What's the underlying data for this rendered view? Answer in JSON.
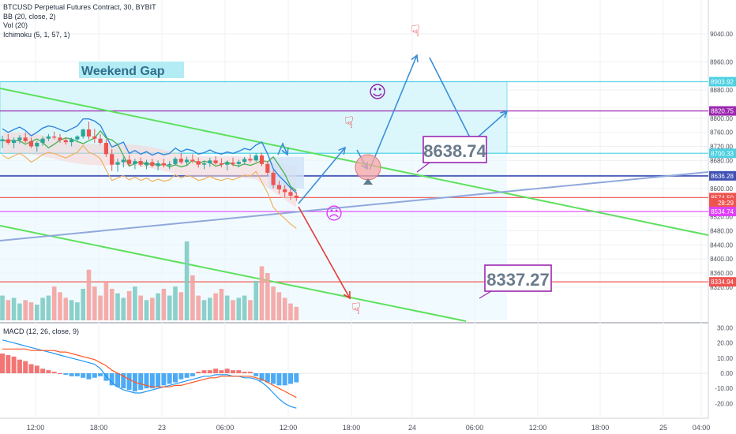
{
  "chart_data": {
    "type": "candlestick",
    "legend": [
      "BTCUSD Perpetual Futures Contract, 30, BYBIT",
      "BB (20, close, 2)",
      "Vol (20)",
      "Ichimoku (5, 1, 57, 1)"
    ],
    "macd_label": "MACD (12, 26, close, 9)",
    "y_ticks": [
      "9040.00",
      "8960.00",
      "8880.00",
      "8800.00",
      "8760.00",
      "8720.00",
      "8680.00",
      "8600.00",
      "8520.00",
      "8480.00",
      "8440.00",
      "8400.00",
      "8360.00",
      "8320.00"
    ],
    "macd_ticks": [
      "30.00",
      "20.00",
      "10.00",
      "0.00",
      "-10.00",
      "-20.00"
    ],
    "x_ticks": [
      "12:00",
      "18:00",
      "23",
      "06:00",
      "12:00",
      "18:00",
      "24",
      "06:00",
      "12:00",
      "18:00",
      "25",
      "04:00"
    ],
    "levels": [
      {
        "label": "8903.92",
        "value": 8903.92,
        "color": "#4dd0e1"
      },
      {
        "label": "8820.75",
        "value": 8820.75,
        "color": "#9c27b0"
      },
      {
        "label": "8700.33",
        "value": 8700.33,
        "color": "#4dd0e1"
      },
      {
        "label": "8636.28",
        "value": 8636.28,
        "color": "#3f51b5"
      },
      {
        "label": "8574.50",
        "value": 8574.5,
        "color": "#ef5350"
      },
      {
        "label": "28:29",
        "value": 8560,
        "color": "#ef5350"
      },
      {
        "label": "8534.74",
        "value": 8534.74,
        "color": "#e040fb"
      },
      {
        "label": "8334.94",
        "value": 8334.94,
        "color": "#ef5350"
      }
    ],
    "annotations": {
      "weekend_gap": "Weekend Gap",
      "upper_target": "8638.74",
      "lower_target": "8337.27"
    },
    "candles": [
      [
        8735,
        8750,
        8715,
        8740
      ],
      [
        8740,
        8755,
        8725,
        8730
      ],
      [
        8730,
        8745,
        8715,
        8738
      ],
      [
        8738,
        8752,
        8728,
        8745
      ],
      [
        8745,
        8760,
        8730,
        8735
      ],
      [
        8735,
        8745,
        8715,
        8720
      ],
      [
        8720,
        8735,
        8705,
        8730
      ],
      [
        8730,
        8748,
        8722,
        8742
      ],
      [
        8742,
        8755,
        8735,
        8748
      ],
      [
        8748,
        8762,
        8740,
        8745
      ],
      [
        8745,
        8755,
        8730,
        8738
      ],
      [
        8738,
        8746,
        8725,
        8732
      ],
      [
        8732,
        8745,
        8720,
        8740
      ],
      [
        8740,
        8752,
        8732,
        8748
      ],
      [
        8748,
        8770,
        8742,
        8768
      ],
      [
        8768,
        8790,
        8740,
        8748
      ],
      [
        8748,
        8770,
        8730,
        8742
      ],
      [
        8742,
        8755,
        8725,
        8730
      ],
      [
        8730,
        8740,
        8690,
        8698
      ],
      [
        8698,
        8712,
        8650,
        8668
      ],
      [
        8668,
        8685,
        8648,
        8675
      ],
      [
        8675,
        8690,
        8660,
        8682
      ],
      [
        8682,
        8695,
        8665,
        8670
      ],
      [
        8670,
        8685,
        8655,
        8678
      ],
      [
        8678,
        8688,
        8662,
        8668
      ],
      [
        8668,
        8682,
        8655,
        8675
      ],
      [
        8675,
        8685,
        8660,
        8665
      ],
      [
        8665,
        8680,
        8652,
        8672
      ],
      [
        8672,
        8685,
        8660,
        8666
      ],
      [
        8666,
        8678,
        8655,
        8670
      ],
      [
        8670,
        8690,
        8665,
        8685
      ],
      [
        8685,
        8700,
        8670,
        8675
      ],
      [
        8675,
        8690,
        8665,
        8682
      ],
      [
        8682,
        8698,
        8672,
        8678
      ],
      [
        8678,
        8688,
        8660,
        8668
      ],
      [
        8668,
        8680,
        8655,
        8672
      ],
      [
        8672,
        8688,
        8662,
        8680
      ],
      [
        8680,
        8692,
        8668,
        8672
      ],
      [
        8672,
        8686,
        8660,
        8668
      ],
      [
        8668,
        8680,
        8652,
        8674
      ],
      [
        8674,
        8688,
        8664,
        8670
      ],
      [
        8670,
        8682,
        8660,
        8676
      ],
      [
        8676,
        8690,
        8668,
        8684
      ],
      [
        8684,
        8698,
        8674,
        8680
      ],
      [
        8680,
        8700,
        8676,
        8694
      ],
      [
        8694,
        8702,
        8664,
        8670
      ],
      [
        8670,
        8678,
        8638,
        8645
      ],
      [
        8645,
        8652,
        8600,
        8610
      ],
      [
        8610,
        8622,
        8585,
        8598
      ],
      [
        8598,
        8610,
        8575,
        8590
      ],
      [
        8590,
        8600,
        8568,
        8580
      ],
      [
        8580,
        8590,
        8565,
        8574
      ]
    ],
    "volumes": [
      22,
      18,
      20,
      15,
      18,
      16,
      14,
      20,
      22,
      30,
      25,
      20,
      18,
      16,
      28,
      45,
      30,
      22,
      35,
      28,
      24,
      20,
      26,
      30,
      22,
      18,
      20,
      24,
      28,
      22,
      30,
      25,
      70,
      40,
      22,
      18,
      20,
      24,
      28,
      22,
      18,
      20,
      22,
      18,
      35,
      48,
      42,
      30,
      25,
      20,
      15,
      12
    ],
    "macd_hist": [
      13,
      12,
      11,
      9,
      8,
      6,
      5,
      3,
      2,
      1,
      0,
      -1,
      -2,
      -2,
      -3,
      -4,
      -3,
      -2,
      -5,
      -8,
      -9,
      -10,
      -11,
      -12,
      -11,
      -10,
      -10,
      -9,
      -8,
      -7,
      -6,
      -4,
      -3,
      -2,
      1,
      2,
      2,
      3,
      2,
      3,
      2,
      2,
      1,
      1,
      -2,
      -5,
      -6,
      -7,
      -8,
      -8,
      -7,
      -6
    ],
    "macd_line": [
      22,
      21,
      20,
      19,
      18,
      17,
      16,
      15,
      14,
      13,
      12,
      11,
      10,
      9,
      8,
      7,
      6,
      3,
      -2,
      -6,
      -9,
      -11,
      -12,
      -13,
      -13,
      -12,
      -11,
      -10,
      -9,
      -8,
      -7,
      -6,
      -5,
      -4,
      -3,
      -2,
      -2,
      -1,
      -1,
      -1,
      -2,
      -2,
      -3,
      -3,
      -4,
      -6,
      -9,
      -13,
      -17,
      -20,
      -22,
      -23
    ],
    "signal_line": [
      16,
      16,
      16,
      16,
      16,
      15,
      15,
      15,
      15,
      15,
      14,
      14,
      13,
      12,
      11,
      10,
      9,
      7,
      5,
      2,
      0,
      -2,
      -4,
      -6,
      -7,
      -8,
      -9,
      -9,
      -9,
      -9,
      -8,
      -8,
      -7,
      -6,
      -5,
      -4,
      -3,
      -3,
      -2,
      -2,
      -2,
      -2,
      -2,
      -2,
      -3,
      -4,
      -6,
      -8,
      -10,
      -12,
      -14,
      -16
    ]
  }
}
